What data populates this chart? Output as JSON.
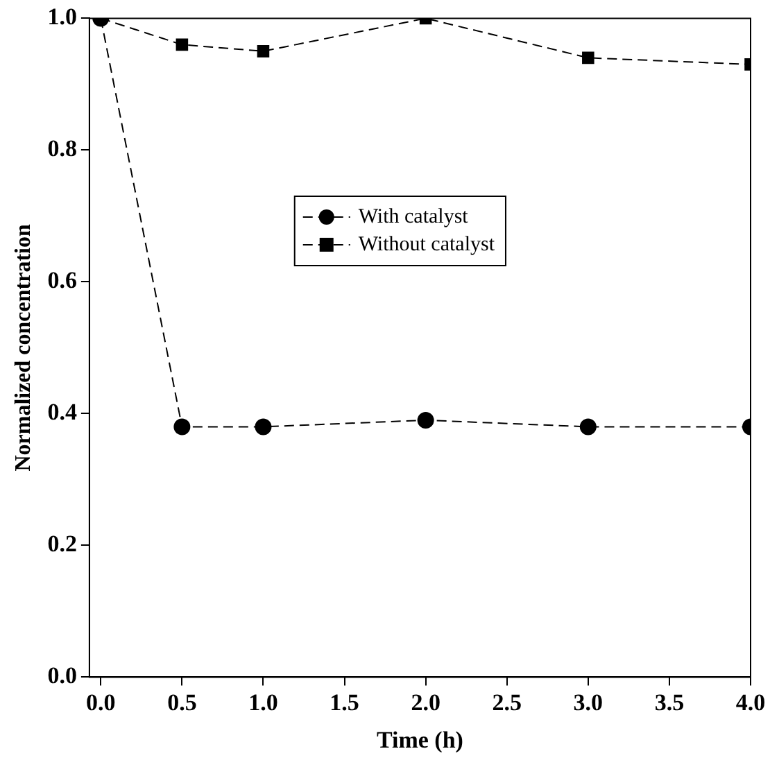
{
  "chart_data": {
    "type": "line",
    "xlabel": "Time (h)",
    "ylabel": "Normalized concentration",
    "x": [
      0,
      0.5,
      1,
      2,
      3,
      4
    ],
    "series": [
      {
        "name": "With catalyst",
        "color": "#000000",
        "marker": "circle",
        "values": [
          1.0,
          0.38,
          0.38,
          0.39,
          0.38,
          0.38
        ]
      },
      {
        "name": "Without catalyst",
        "color": "#000000",
        "marker": "square",
        "values": [
          1.0,
          0.96,
          0.95,
          1.0,
          0.94,
          0.93
        ]
      }
    ],
    "xlim": [
      -0.07,
      4.0
    ],
    "xticks": [
      {
        "value": 0,
        "label": "0.0"
      },
      0.5,
      {
        "value": 1,
        "label": "1.0"
      },
      1.5,
      {
        "value": 2,
        "label": "2.0"
      },
      2.5,
      {
        "value": 3,
        "label": "3.0"
      },
      3.5,
      {
        "value": 4,
        "label": "4.0"
      }
    ],
    "ylim": [
      0,
      1.0
    ],
    "yticks": [
      {
        "value": 0,
        "label": "0.0"
      },
      0.2,
      0.4,
      0.6,
      0.8,
      {
        "value": 1,
        "label": "1.0"
      }
    ],
    "grid": false,
    "legend": "center",
    "line_style": "dashed"
  }
}
